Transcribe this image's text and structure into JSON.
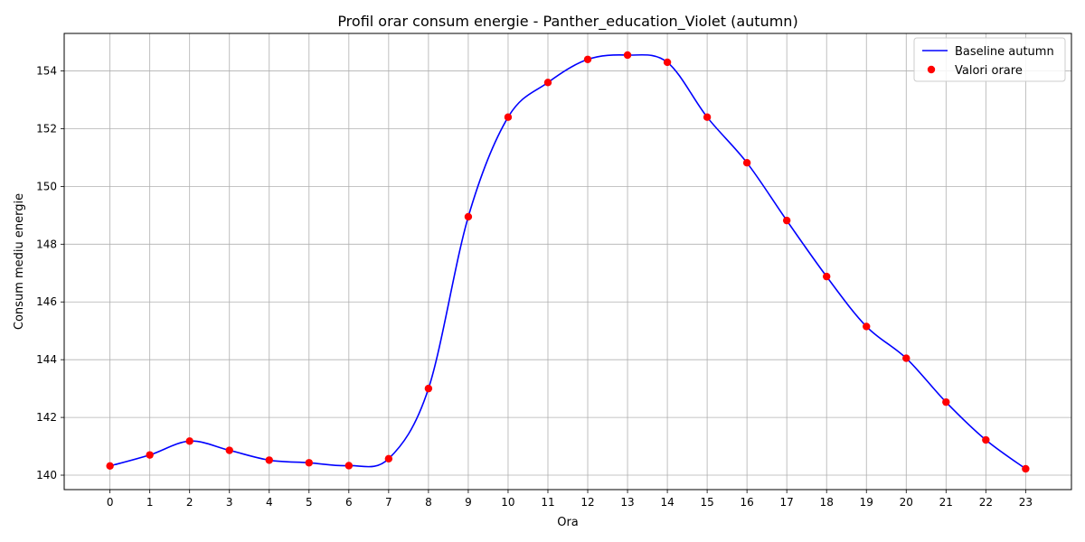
{
  "chart_data": {
    "type": "line",
    "title": "Profil orar consum energie - Panther_education_Violet (autumn)",
    "xlabel": "Ora",
    "ylabel": "Consum mediu energie",
    "x": [
      0,
      1,
      2,
      3,
      4,
      5,
      6,
      7,
      8,
      9,
      10,
      11,
      12,
      13,
      14,
      15,
      16,
      17,
      18,
      19,
      20,
      21,
      22,
      23
    ],
    "xlim": [
      -1.15,
      24.15
    ],
    "ylim": [
      139.5,
      155.3
    ],
    "yticks": [
      140,
      142,
      144,
      146,
      148,
      150,
      152,
      154
    ],
    "grid": true,
    "legend_position": "top-right",
    "series": [
      {
        "name": "Baseline autumn",
        "kind": "smooth-line",
        "color": "#0000ff",
        "values": [
          140.32,
          140.7,
          141.18,
          140.86,
          140.52,
          140.43,
          140.33,
          140.57,
          143.0,
          148.95,
          152.4,
          153.6,
          154.4,
          154.55,
          154.3,
          152.4,
          150.82,
          148.82,
          146.88,
          145.15,
          144.05,
          142.53,
          141.22,
          140.22
        ]
      },
      {
        "name": "Valori orare",
        "kind": "scatter",
        "color": "#ff0000",
        "values": [
          140.32,
          140.7,
          141.18,
          140.86,
          140.52,
          140.43,
          140.33,
          140.57,
          143.0,
          148.95,
          152.4,
          153.6,
          154.4,
          154.55,
          154.3,
          152.4,
          150.82,
          148.82,
          146.88,
          145.15,
          144.05,
          142.53,
          141.22,
          140.22
        ]
      }
    ]
  }
}
